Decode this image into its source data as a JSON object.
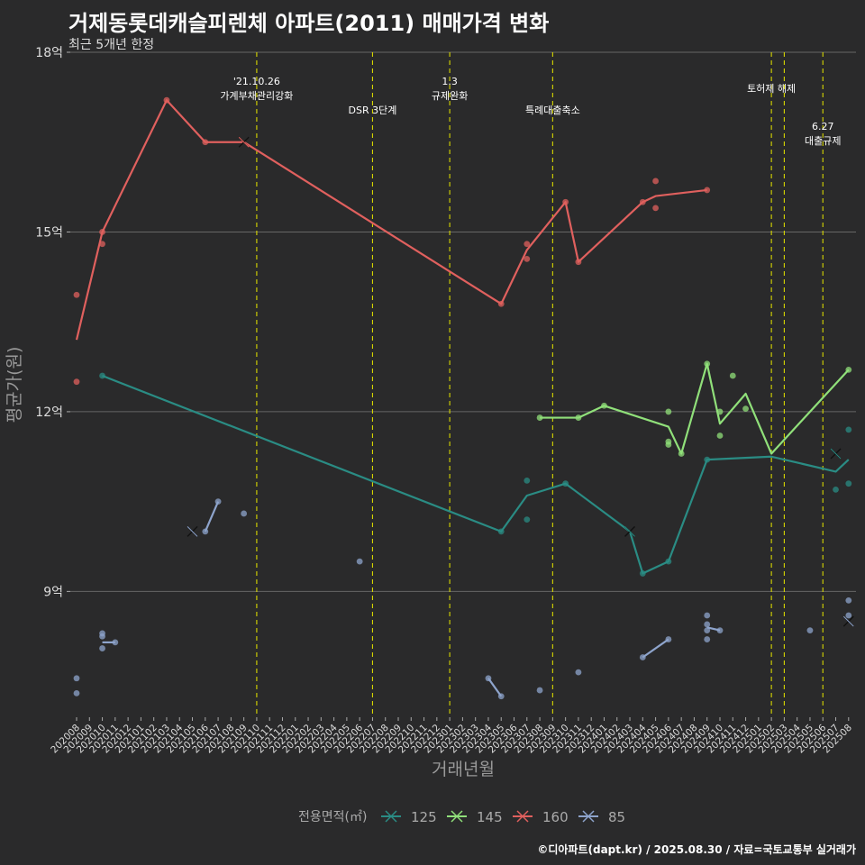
{
  "title": "거제동롯데캐슬피렌체 아파트(2011) 매매가격 변화",
  "subtitle": "최근 5개년 한정",
  "caption": "©디아파트(dapt.kr) / 2025.08.30 / 자료=국토교통부 실거래가",
  "chart_data": {
    "type": "line",
    "xlabel": "거래년월",
    "ylabel": "평균가(원)",
    "ylim": [
      6.9,
      18
    ],
    "y_ticks": [
      {
        "value": 9,
        "label": "9억"
      },
      {
        "value": 12,
        "label": "12억"
      },
      {
        "value": 15,
        "label": "15억"
      },
      {
        "value": 18,
        "label": "18억"
      }
    ],
    "x_ticks": [
      "202008",
      "202009",
      "202010",
      "202011",
      "202012",
      "202101",
      "202102",
      "202103",
      "202104",
      "202105",
      "202106",
      "202107",
      "202108",
      "202109",
      "202110",
      "202111",
      "202112",
      "202201",
      "202202",
      "202203",
      "202204",
      "202205",
      "202206",
      "202207",
      "202208",
      "202209",
      "202210",
      "202211",
      "202212",
      "202301",
      "202302",
      "202303",
      "202304",
      "202305",
      "202306",
      "202307",
      "202308",
      "202309",
      "202310",
      "202311",
      "202312",
      "202401",
      "202402",
      "202403",
      "202404",
      "202405",
      "202406",
      "202407",
      "202408",
      "202409",
      "202410",
      "202411",
      "202412",
      "202501",
      "202502",
      "202503",
      "202504",
      "202505",
      "202506",
      "202507",
      "202508"
    ],
    "grid": true,
    "legend": {
      "title": "전용면적(㎡)",
      "position": "bottom",
      "items": [
        {
          "label": "125",
          "color": "#2a8c84"
        },
        {
          "label": "145",
          "color": "#90e07a"
        },
        {
          "label": "160",
          "color": "#e0605e"
        },
        {
          "label": "85",
          "color": "#8ea4cc"
        }
      ]
    },
    "events": [
      {
        "x": "202110",
        "lines": [
          "'21.10.26",
          "가계부채관리강화"
        ],
        "row": 0
      },
      {
        "x": "202207",
        "lines": [
          "DSR 3단계"
        ],
        "row": 2
      },
      {
        "x": "202301",
        "lines": [
          "1.3",
          "규제완화"
        ],
        "row": 0
      },
      {
        "x": "202309",
        "lines": [
          "특례대출축소"
        ],
        "row": 2
      },
      {
        "x": "202502",
        "lines": [
          "토허제 해제"
        ],
        "row": 1
      },
      {
        "x": "202503",
        "lines": [],
        "row": 1
      },
      {
        "x": "202506",
        "lines": [
          "6.27",
          "대출규제"
        ],
        "row": 3
      }
    ],
    "series": [
      {
        "name": "125",
        "color": "#2a8c84",
        "line": [
          [
            "202010",
            12.6
          ],
          [
            "202305",
            10.0
          ],
          [
            "202307",
            10.6
          ],
          [
            "202310",
            10.8
          ],
          [
            "202403",
            10.0
          ],
          [
            "202404",
            9.3
          ],
          [
            "202406",
            9.5
          ],
          [
            "202409",
            11.2
          ],
          [
            "202502",
            11.25
          ],
          [
            "202507",
            11.0
          ],
          [
            "202508",
            11.2
          ]
        ],
        "points": [
          [
            "202010",
            12.6
          ],
          [
            "202305",
            10.0
          ],
          [
            "202307",
            10.85
          ],
          [
            "202307",
            10.2
          ],
          [
            "202310",
            10.8
          ],
          [
            "202404",
            9.3
          ],
          [
            "202406",
            9.5
          ],
          [
            "202409",
            11.2
          ],
          [
            "202507",
            10.7
          ],
          [
            "202508",
            10.8
          ],
          [
            "202508",
            11.7
          ]
        ],
        "crosses": [
          [
            "202403",
            10.0
          ],
          [
            "202507",
            11.3
          ]
        ]
      },
      {
        "name": "145",
        "color": "#90e07a",
        "line": [
          [
            "202308",
            11.9
          ],
          [
            "202311",
            11.9
          ],
          [
            "202401",
            12.1
          ],
          [
            "202406",
            11.75
          ],
          [
            "202407",
            11.3
          ],
          [
            "202409",
            12.8
          ],
          [
            "202410",
            11.8
          ],
          [
            "202412",
            12.3
          ],
          [
            "202502",
            11.3
          ],
          [
            "202508",
            12.7
          ]
        ],
        "points": [
          [
            "202308",
            11.9
          ],
          [
            "202311",
            11.9
          ],
          [
            "202401",
            12.1
          ],
          [
            "202406",
            12.0
          ],
          [
            "202406",
            11.5
          ],
          [
            "202406",
            11.45
          ],
          [
            "202407",
            11.3
          ],
          [
            "202409",
            12.8
          ],
          [
            "202410",
            12.0
          ],
          [
            "202410",
            11.6
          ],
          [
            "202411",
            12.6
          ],
          [
            "202412",
            12.05
          ],
          [
            "202508",
            12.7
          ]
        ],
        "crosses": []
      },
      {
        "name": "160",
        "color": "#e0605e",
        "line": [
          [
            "202008",
            13.2
          ],
          [
            "202010",
            15.0
          ],
          [
            "202103",
            17.2
          ],
          [
            "202106",
            16.5
          ],
          [
            "202109",
            16.5
          ],
          [
            "202305",
            13.8
          ],
          [
            "202307",
            14.7
          ],
          [
            "202310",
            15.5
          ],
          [
            "202311",
            14.5
          ],
          [
            "202404",
            15.5
          ],
          [
            "202405",
            15.6
          ],
          [
            "202409",
            15.7
          ]
        ],
        "points": [
          [
            "202008",
            13.95
          ],
          [
            "202008",
            12.5
          ],
          [
            "202010",
            15.0
          ],
          [
            "202010",
            14.8
          ],
          [
            "202103",
            17.2
          ],
          [
            "202106",
            16.5
          ],
          [
            "202305",
            13.8
          ],
          [
            "202307",
            14.8
          ],
          [
            "202307",
            14.55
          ],
          [
            "202310",
            15.5
          ],
          [
            "202311",
            14.5
          ],
          [
            "202404",
            15.5
          ],
          [
            "202405",
            15.85
          ],
          [
            "202405",
            15.4
          ],
          [
            "202409",
            15.7
          ]
        ],
        "crosses": [
          [
            "202109",
            16.5
          ]
        ]
      },
      {
        "name": "85",
        "color": "#8ea4cc",
        "segments": [
          [
            [
              "202010",
              8.15
            ],
            [
              "202011",
              8.15
            ]
          ],
          [
            [
              "202106",
              10.0
            ],
            [
              "202107",
              10.5
            ]
          ],
          [
            [
              "202304",
              7.55
            ],
            [
              "202305",
              7.25
            ]
          ],
          [
            [
              "202404",
              7.9
            ],
            [
              "202406",
              8.2
            ]
          ],
          [
            [
              "202409",
              8.4
            ],
            [
              "202410",
              8.35
            ]
          ]
        ],
        "points": [
          [
            "202008",
            7.55
          ],
          [
            "202008",
            7.3
          ],
          [
            "202010",
            8.3
          ],
          [
            "202010",
            8.25
          ],
          [
            "202010",
            8.05
          ],
          [
            "202011",
            8.15
          ],
          [
            "202106",
            10.0
          ],
          [
            "202107",
            10.5
          ],
          [
            "202109",
            10.3
          ],
          [
            "202206",
            9.5
          ],
          [
            "202304",
            7.55
          ],
          [
            "202305",
            7.25
          ],
          [
            "202308",
            7.35
          ],
          [
            "202311",
            7.65
          ],
          [
            "202404",
            7.9
          ],
          [
            "202406",
            8.2
          ],
          [
            "202409",
            8.6
          ],
          [
            "202409",
            8.45
          ],
          [
            "202409",
            8.35
          ],
          [
            "202409",
            8.2
          ],
          [
            "202410",
            8.35
          ],
          [
            "202505",
            8.35
          ],
          [
            "202508",
            8.85
          ],
          [
            "202508",
            8.6
          ]
        ],
        "crosses": [
          [
            "202105",
            10.0
          ],
          [
            "202508",
            8.5
          ]
        ]
      }
    ]
  }
}
